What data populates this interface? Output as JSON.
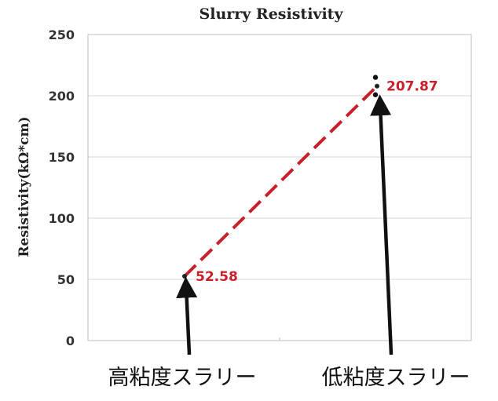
{
  "chart_data": {
    "type": "line",
    "title": "Slurry Resistivity",
    "ylabel": "Resistivity(kΩ*cm)",
    "xlabel": "",
    "ylim": [
      0,
      250
    ],
    "yticks": [
      "0",
      "50",
      "100",
      "150",
      "200",
      "250"
    ],
    "grid": true,
    "series": [
      {
        "values": [
          52.58,
          207.87
        ],
        "data_labels": [
          "52.58",
          "207.87"
        ],
        "color": "#c8202a",
        "line_style": "dashed"
      }
    ],
    "extra_points": [
      215
    ],
    "annotations": [
      {
        "text": "高粘度スラリー",
        "points_to": 0
      },
      {
        "text": "低粘度スラリー",
        "points_to": 1
      }
    ]
  },
  "colors": {
    "series": "#c8202a",
    "grid": "#d6d6d6",
    "frame": "#bdbdbd",
    "arrow": "#111111"
  }
}
